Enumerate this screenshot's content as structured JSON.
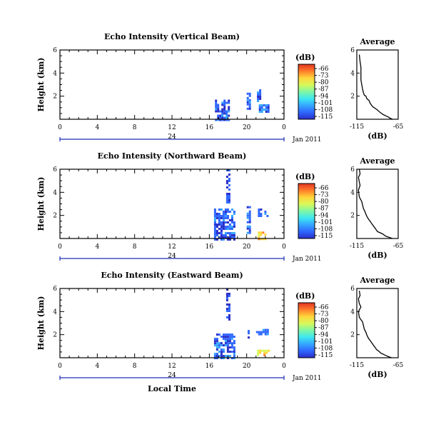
{
  "figure": {
    "time_label": "Local Time",
    "date_label": "Jan 2011",
    "day_marker": "24",
    "colorbar_unit": "(dB)",
    "colorbar_ticks": [
      "-66",
      "-73",
      "-80",
      "-87",
      "-94",
      "-101",
      "-108",
      "-115"
    ],
    "colors": [
      "#2a2ec7",
      "#2f66ff",
      "#35a6ff",
      "#3ee7f0",
      "#7ff7a6",
      "#d8f85a",
      "#ffd63a",
      "#ff7d2a",
      "#e23222"
    ]
  },
  "chart_data": [
    {
      "type": "heatmap",
      "title": "Echo Intensity (Vertical Beam)",
      "ylabel": "Height (km)",
      "xlabel": "Local Time",
      "x_ticks": [
        "0",
        "4",
        "8",
        "12",
        "16",
        "20",
        "0"
      ],
      "xlim": [
        0,
        24
      ],
      "ylim": [
        0,
        6
      ],
      "y_ticks": [
        "2",
        "4",
        "6"
      ],
      "colorbar": {
        "label": "(dB)",
        "range": [
          -115,
          -66
        ]
      },
      "echo_regions": [
        {
          "t_start": 16.6,
          "t_end": 18.2,
          "h_bottom": 0.0,
          "h_top": 1.7,
          "db": -110
        },
        {
          "t_start": 20.0,
          "t_end": 20.3,
          "h_bottom": 1.0,
          "h_top": 2.3,
          "db": -110
        },
        {
          "t_start": 21.1,
          "t_end": 21.4,
          "h_bottom": 1.5,
          "h_top": 2.6,
          "db": -110
        },
        {
          "t_start": 21.3,
          "t_end": 22.4,
          "h_bottom": 0.6,
          "h_top": 1.3,
          "db": -108
        }
      ]
    },
    {
      "type": "line",
      "title": "Average",
      "xlabel": "(dB)",
      "x_ticks": [
        "-115",
        "-65"
      ],
      "xlim": [
        -115,
        -65
      ],
      "ylim": [
        0,
        6
      ],
      "y_ticks": [
        "2",
        "4",
        "6"
      ],
      "x": [
        -112,
        -111,
        -110,
        -110,
        -108,
        -107,
        -106,
        -104,
        -103,
        -100,
        -99,
        -97,
        -96,
        -94,
        -92,
        -90,
        -87,
        -85,
        -83,
        -80,
        -77,
        -75,
        -72
      ],
      "y": [
        5.6,
        5.0,
        4.5,
        3.4,
        2.6,
        2.3,
        2.1,
        2.0,
        1.8,
        1.6,
        1.4,
        1.2,
        1.1,
        1.0,
        0.9,
        0.8,
        0.6,
        0.5,
        0.4,
        0.3,
        0.2,
        0.1,
        0.0
      ]
    },
    {
      "type": "heatmap",
      "title": "Echo Intensity (Northward Beam)",
      "ylabel": "Height (km)",
      "xlabel": "Local Time",
      "x_ticks": [
        "0",
        "4",
        "8",
        "12",
        "16",
        "20",
        "0"
      ],
      "xlim": [
        0,
        24
      ],
      "ylim": [
        0,
        6
      ],
      "y_ticks": [
        "2",
        "4",
        "6"
      ],
      "colorbar": {
        "label": "(dB)",
        "range": [
          -115,
          -66
        ]
      },
      "echo_regions": [
        {
          "t_start": 16.5,
          "t_end": 18.6,
          "h_bottom": 0.0,
          "h_top": 2.6,
          "db": -110
        },
        {
          "t_start": 17.8,
          "t_end": 18.2,
          "h_bottom": 3.2,
          "h_top": 6.0,
          "db": -112
        },
        {
          "t_start": 20.0,
          "t_end": 20.3,
          "h_bottom": 0.5,
          "h_top": 2.8,
          "db": -110
        },
        {
          "t_start": 21.2,
          "t_end": 22.3,
          "h_bottom": 1.9,
          "h_top": 2.6,
          "db": -108
        },
        {
          "t_start": 21.2,
          "t_end": 22.0,
          "h_bottom": 0.0,
          "h_top": 0.6,
          "db": -80
        }
      ]
    },
    {
      "type": "line",
      "title": "Average",
      "xlabel": "(dB)",
      "x_ticks": [
        "-115",
        "-65"
      ],
      "xlim": [
        -115,
        -65
      ],
      "ylim": [
        0,
        6
      ],
      "y_ticks": [
        "2",
        "4",
        "6"
      ],
      "x": [
        -112,
        -111,
        -113,
        -112,
        -111,
        -113,
        -112,
        -109,
        -108,
        -107,
        -105,
        -104,
        -102,
        -100,
        -98,
        -96,
        -94,
        -92,
        -90,
        -87,
        -84,
        -80,
        -76,
        -72
      ],
      "y": [
        6.0,
        5.6,
        5.3,
        4.9,
        4.6,
        4.2,
        3.6,
        3.2,
        2.9,
        2.6,
        2.3,
        2.1,
        1.8,
        1.6,
        1.4,
        1.2,
        1.0,
        0.8,
        0.6,
        0.5,
        0.4,
        0.2,
        0.1,
        0.0
      ]
    },
    {
      "type": "heatmap",
      "title": "Echo Intensity (Eastward Beam)",
      "ylabel": "Height (km)",
      "xlabel": "Local Time",
      "x_ticks": [
        "0",
        "4",
        "8",
        "12",
        "16",
        "20",
        "0"
      ],
      "xlim": [
        0,
        24
      ],
      "ylim": [
        0,
        6
      ],
      "y_ticks": [
        "2",
        "4",
        "6"
      ],
      "colorbar": {
        "label": "(dB)",
        "range": [
          -115,
          -66
        ]
      },
      "echo_regions": [
        {
          "t_start": 16.5,
          "t_end": 18.6,
          "h_bottom": 0.0,
          "h_top": 2.1,
          "db": -110
        },
        {
          "t_start": 17.8,
          "t_end": 18.2,
          "h_bottom": 3.4,
          "h_top": 6.0,
          "db": -112
        },
        {
          "t_start": 20.1,
          "t_end": 20.3,
          "h_bottom": 1.2,
          "h_top": 2.4,
          "db": -110
        },
        {
          "t_start": 21.0,
          "t_end": 22.2,
          "h_bottom": 2.0,
          "h_top": 2.5,
          "db": -108
        },
        {
          "t_start": 21.1,
          "t_end": 22.3,
          "h_bottom": 0.3,
          "h_top": 0.7,
          "db": -80
        }
      ]
    },
    {
      "type": "line",
      "title": "Average",
      "xlabel": "(dB)",
      "x_ticks": [
        "-115",
        "-65"
      ],
      "xlim": [
        -115,
        -65
      ],
      "ylim": [
        0,
        6
      ],
      "y_ticks": [
        "2",
        "4",
        "6"
      ],
      "x": [
        -112,
        -111,
        -113,
        -112,
        -110,
        -113,
        -112,
        -108,
        -107,
        -106,
        -104,
        -103,
        -101,
        -99,
        -97,
        -95,
        -93,
        -91,
        -89,
        -86,
        -83,
        -80,
        -77,
        -73
      ],
      "y": [
        5.8,
        5.4,
        5.1,
        4.7,
        4.4,
        4.0,
        3.5,
        3.1,
        2.8,
        2.5,
        2.2,
        2.0,
        1.7,
        1.5,
        1.3,
        1.1,
        0.9,
        0.7,
        0.6,
        0.4,
        0.3,
        0.2,
        0.1,
        0.0
      ]
    }
  ]
}
